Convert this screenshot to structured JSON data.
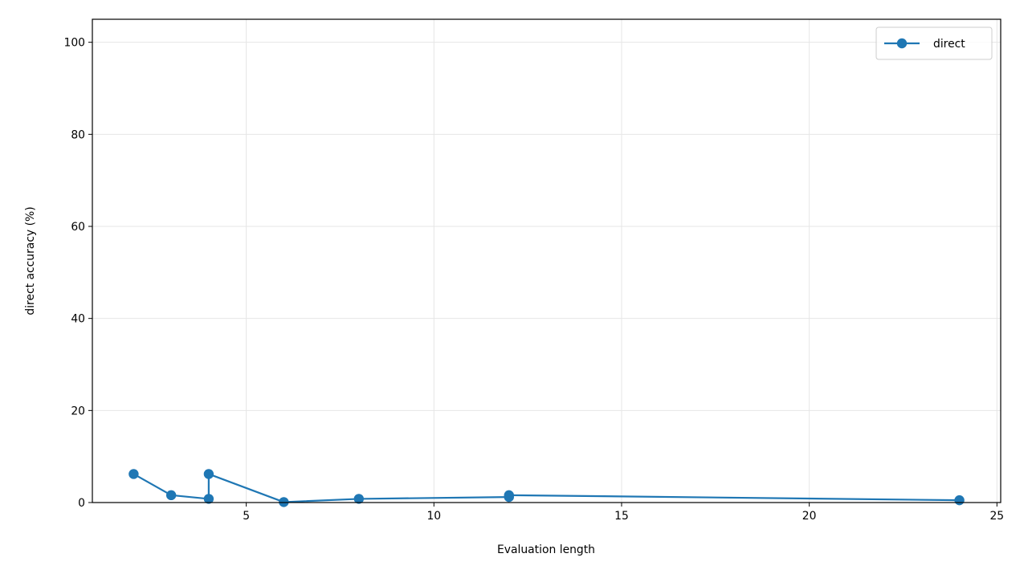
{
  "chart_data": {
    "type": "line",
    "xlabel": "Evaluation length",
    "ylabel": "direct accuracy (%)",
    "xlim": [
      0.9,
      25.1
    ],
    "ylim": [
      0,
      105
    ],
    "xticks": [
      5,
      10,
      15,
      20,
      25
    ],
    "yticks": [
      0,
      20,
      40,
      60,
      80,
      100
    ],
    "grid": true,
    "legend_position": "top-right",
    "series": [
      {
        "name": "direct",
        "color": "#1f77b4",
        "marker": "circle",
        "points": [
          {
            "x": 2,
            "y": 6.2
          },
          {
            "x": 3,
            "y": 1.6
          },
          {
            "x": 4,
            "y": 0.8
          },
          {
            "x": 4,
            "y": 6.2
          },
          {
            "x": 6,
            "y": 0.1
          },
          {
            "x": 8,
            "y": 0.8
          },
          {
            "x": 12,
            "y": 1.2
          },
          {
            "x": 12,
            "y": 1.6
          },
          {
            "x": 24,
            "y": 0.5
          }
        ]
      }
    ]
  }
}
